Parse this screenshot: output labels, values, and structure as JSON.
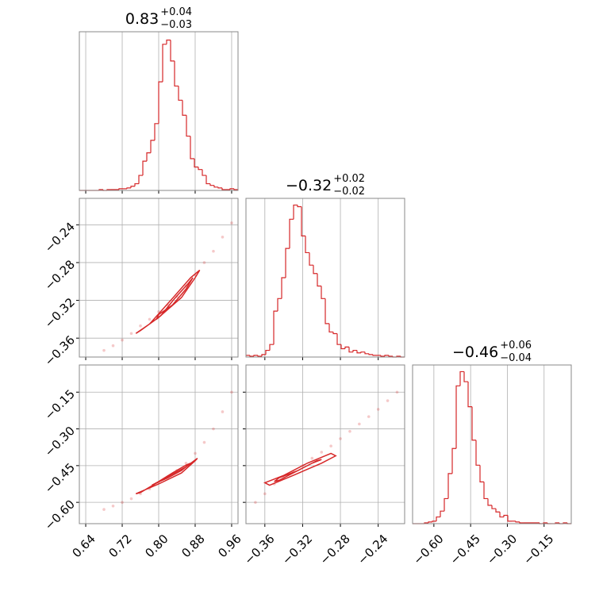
{
  "chart_data": {
    "type": "corner",
    "color": "#d62728",
    "grid": true,
    "parameters": [
      {
        "title": {
          "median": "0.83",
          "upper": "+0.04",
          "lower": "−0.03"
        },
        "lim": [
          0.626,
          0.974
        ],
        "ticks": [
          0.64,
          0.72,
          {
            "value": 0.8,
            "label": "0.80"
          },
          0.88,
          0.96
        ],
        "ylim": [
          0,
          190
        ],
        "bins": [
          0.626,
          0.6347,
          0.6434,
          0.6521,
          0.6608,
          0.6695,
          0.6782,
          0.6869,
          0.6956,
          0.7043,
          0.713,
          0.7217,
          0.7304,
          0.7391,
          0.7478,
          0.7565,
          0.7652,
          0.7739,
          0.7826,
          0.7913,
          0.8,
          0.8087,
          0.8174,
          0.8261,
          0.8348,
          0.8435,
          0.8522,
          0.8609,
          0.8696,
          0.8783,
          0.887,
          0.8957,
          0.9044,
          0.9131,
          0.9218,
          0.9305,
          0.9392,
          0.9479,
          0.9566,
          0.9653,
          0.974
        ],
        "counts": [
          0,
          0,
          0,
          0,
          0,
          1,
          0,
          1,
          1,
          1,
          2,
          2,
          3,
          5,
          8,
          18,
          35,
          45,
          60,
          80,
          130,
          175,
          180,
          155,
          125,
          108,
          90,
          65,
          38,
          28,
          25,
          18,
          8,
          6,
          4,
          3,
          1,
          1,
          2,
          1
        ]
      },
      {
        "title": {
          "median": "−0.32",
          "upper": "+0.02",
          "lower": "−0.02"
        },
        "lim": [
          -0.38,
          -0.212
        ],
        "ticks": [
          {
            "value": -0.36,
            "label": "−0.36"
          },
          {
            "value": -0.32,
            "label": "−0.32"
          },
          {
            "value": -0.28,
            "label": "−0.28"
          },
          {
            "value": -0.24,
            "label": "−0.24"
          }
        ],
        "ylim": [
          0,
          190
        ],
        "bins": [
          -0.38,
          -0.3758,
          -0.3716,
          -0.3674,
          -0.3632,
          -0.359,
          -0.3548,
          -0.3506,
          -0.3464,
          -0.3422,
          -0.338,
          -0.3338,
          -0.3296,
          -0.3254,
          -0.3212,
          -0.317,
          -0.3128,
          -0.3086,
          -0.3044,
          -0.3002,
          -0.296,
          -0.2918,
          -0.2876,
          -0.2834,
          -0.2792,
          -0.275,
          -0.2708,
          -0.2666,
          -0.2624,
          -0.2582,
          -0.254,
          -0.2498,
          -0.2456,
          -0.2414,
          -0.2372,
          -0.233,
          -0.2288,
          -0.2246,
          -0.2204,
          -0.2162,
          -0.212
        ],
        "counts": [
          2,
          1,
          2,
          1,
          3,
          8,
          15,
          55,
          70,
          95,
          130,
          165,
          182,
          180,
          145,
          125,
          110,
          100,
          85,
          70,
          40,
          30,
          28,
          15,
          10,
          12,
          6,
          8,
          5,
          6,
          4,
          3,
          2,
          2,
          1,
          2,
          1,
          0,
          1,
          0
        ]
      },
      {
        "title": {
          "median": "−0.46",
          "upper": "+0.06",
          "lower": "−0.04"
        },
        "lim": [
          -0.687,
          -0.039
        ],
        "ticks": [
          {
            "value": -0.6,
            "label": "−0.60"
          },
          {
            "value": -0.45,
            "label": "−0.45"
          },
          {
            "value": -0.3,
            "label": "−0.30"
          },
          {
            "value": -0.15,
            "label": "−0.15"
          }
        ],
        "ylim": [
          0,
          190
        ],
        "bins": [
          -0.687,
          -0.6708,
          -0.6546,
          -0.6384,
          -0.6222,
          -0.606,
          -0.5898,
          -0.5736,
          -0.5574,
          -0.5412,
          -0.525,
          -0.5088,
          -0.4926,
          -0.4764,
          -0.4602,
          -0.444,
          -0.4278,
          -0.4116,
          -0.3954,
          -0.3792,
          -0.363,
          -0.3468,
          -0.3306,
          -0.3144,
          -0.2982,
          -0.282,
          -0.2658,
          -0.2496,
          -0.2334,
          -0.2172,
          -0.201,
          -0.1848,
          -0.1686,
          -0.1524,
          -0.1362,
          -0.12,
          -0.1038,
          -0.0876,
          -0.0714,
          -0.0552,
          -0.039
        ],
        "counts": [
          0,
          0,
          0,
          1,
          2,
          3,
          8,
          15,
          30,
          60,
          90,
          165,
          182,
          170,
          140,
          100,
          70,
          50,
          30,
          22,
          18,
          14,
          8,
          10,
          3,
          3,
          2,
          1,
          1,
          1,
          1,
          1,
          0,
          1,
          0,
          0,
          1,
          0,
          1,
          0
        ]
      }
    ],
    "pairs": [
      {
        "samples": {
          "x": [
            0.68,
            0.7,
            0.72,
            0.74,
            0.76,
            0.78,
            0.8,
            0.82,
            0.84,
            0.86,
            0.88,
            0.9,
            0.92,
            0.94,
            0.96
          ],
          "y": [
            -0.373,
            -0.368,
            -0.362,
            -0.355,
            -0.347,
            -0.34,
            -0.332,
            -0.325,
            -0.316,
            -0.305,
            -0.293,
            -0.28,
            -0.268,
            -0.253,
            -0.238
          ]
        },
        "contours": [
          {
            "x": [
              0.8,
              0.83,
              0.86,
              0.875,
              0.865,
              0.835,
              0.805,
              0.795
            ],
            "y": [
              -0.335,
              -0.325,
              -0.308,
              -0.296,
              -0.302,
              -0.318,
              -0.336,
              -0.34
            ]
          },
          {
            "x": [
              0.76,
              0.8,
              0.85,
              0.88,
              0.89,
              0.87,
              0.83,
              0.78,
              0.75
            ],
            "y": [
              -0.352,
              -0.338,
              -0.317,
              -0.296,
              -0.288,
              -0.296,
              -0.318,
              -0.345,
              -0.355
            ]
          }
        ]
      },
      {
        "samples": {
          "x": [
            0.68,
            0.7,
            0.72,
            0.74,
            0.76,
            0.78,
            0.8,
            0.82,
            0.84,
            0.86,
            0.88,
            0.9,
            0.92,
            0.94,
            0.96
          ],
          "y": [
            -0.629,
            -0.615,
            -0.6,
            -0.585,
            -0.565,
            -0.545,
            -0.52,
            -0.495,
            -0.47,
            -0.44,
            -0.4,
            -0.355,
            -0.3,
            -0.23,
            -0.15
          ]
        },
        "contours": [
          {
            "x": [
              0.79,
              0.82,
              0.85,
              0.87,
              0.86,
              0.83,
              0.8,
              0.785
            ],
            "y": [
              -0.525,
              -0.5,
              -0.47,
              -0.44,
              -0.448,
              -0.48,
              -0.515,
              -0.53
            ]
          },
          {
            "x": [
              0.75,
              0.8,
              0.85,
              0.88,
              0.885,
              0.86,
              0.81,
              0.76
            ],
            "y": [
              -0.565,
              -0.525,
              -0.48,
              -0.43,
              -0.42,
              -0.455,
              -0.505,
              -0.56
            ]
          }
        ]
      },
      {
        "samples": {
          "x": [
            -0.37,
            -0.36,
            -0.35,
            -0.34,
            -0.33,
            -0.32,
            -0.31,
            -0.3,
            -0.29,
            -0.28,
            -0.27,
            -0.26,
            -0.25,
            -0.24,
            -0.23,
            -0.22
          ],
          "y": [
            -0.6,
            -0.565,
            -0.525,
            -0.5,
            -0.475,
            -0.45,
            -0.42,
            -0.395,
            -0.37,
            -0.34,
            -0.31,
            -0.28,
            -0.25,
            -0.22,
            -0.185,
            -0.15
          ]
        },
        "contours": [
          {
            "x": [
              -0.345,
              -0.33,
              -0.31,
              -0.3,
              -0.305,
              -0.325,
              -0.345,
              -0.35
            ],
            "y": [
              -0.51,
              -0.48,
              -0.44,
              -0.425,
              -0.43,
              -0.47,
              -0.5,
              -0.515
            ]
          },
          {
            "x": [
              -0.355,
              -0.33,
              -0.3,
              -0.285,
              -0.29,
              -0.315,
              -0.34,
              -0.36
            ],
            "y": [
              -0.53,
              -0.49,
              -0.44,
              -0.41,
              -0.4,
              -0.44,
              -0.49,
              -0.52
            ]
          }
        ]
      }
    ]
  }
}
